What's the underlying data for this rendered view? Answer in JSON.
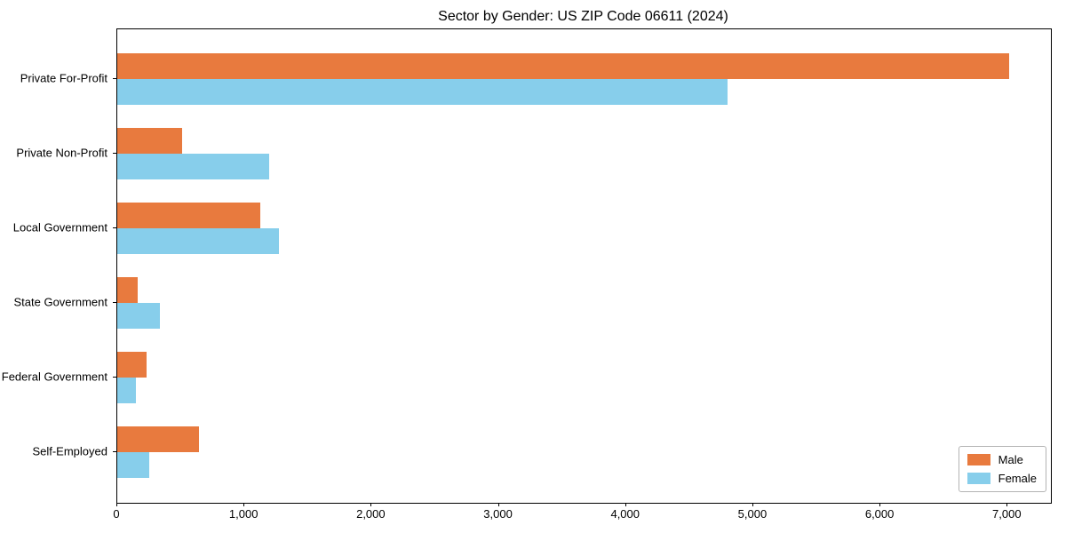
{
  "chart_data": {
    "type": "bar",
    "orientation": "horizontal",
    "title": "Sector by Gender: US ZIP Code 06611 (2024)",
    "categories": [
      "Private For-Profit",
      "Private Non-Profit",
      "Local Government",
      "State Government",
      "Federal Government",
      "Self-Employed"
    ],
    "series": [
      {
        "name": "Male",
        "color": "#e87a3e",
        "values": [
          7010,
          510,
          1125,
          160,
          230,
          645
        ]
      },
      {
        "name": "Female",
        "color": "#87ceeb",
        "values": [
          4795,
          1195,
          1270,
          335,
          150,
          250
        ]
      }
    ],
    "xlim": [
      0,
      7340
    ],
    "xticks": [
      0,
      1000,
      2000,
      3000,
      4000,
      5000,
      6000,
      7000
    ],
    "xtick_labels": [
      "0",
      "1,000",
      "2,000",
      "3,000",
      "4,000",
      "5,000",
      "6,000",
      "7,000"
    ],
    "xlabel": "",
    "ylabel": "",
    "grid": false,
    "legend": {
      "position": "lower right",
      "entries": [
        "Male",
        "Female"
      ]
    },
    "frame": true
  },
  "colors": {
    "male": "#e87a3e",
    "female": "#87ceeb",
    "spine": "#000000",
    "background": "#ffffff",
    "legend_border": "#b4b4b4"
  }
}
